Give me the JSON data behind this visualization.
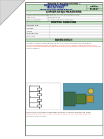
{
  "title_top": "LEMBAR KERJA MAHASISWA 1",
  "university": "UNIVERSITAS JEMBER",
  "faculty": "FAKULTAS TEKNIK",
  "dept": "PROGRAM STUDI TEKNIK ELEKTRO",
  "kode_label": "KODE\nDOKUMEN",
  "kode_value": "F1.03.07",
  "lkm_title": "LEMBAR KERJA MAHASISWA",
  "dosen_label": "Dosen Pengampu/Koordinator",
  "dosen_value": "Dr. Widyono, S.T., M.T., dan Sekundika Yoga",
  "matakuliah_label": "Mata Kuliah",
  "matakuliah_value": "Rangkaian Wiring",
  "topik_label": "Mata Pembelajaran",
  "topik_value": "Analisa dan Pengenalan Komponen",
  "identitas_title": "IDENTITAS MAHASISWA",
  "fields": [
    "Nama/NIM Kelas",
    "Kelompok",
    "Anggota",
    "Penanggung Ke.",
    "Nilai Tunaik"
  ],
  "bahan_title": "BAHAN DISKUSI",
  "bahan_text1": "Perhatikan Gambar penampang komponen sensor kelistrikan rangkaian motor dan diagram",
  "bahan_text2": "Wiring yang ada terampil. Selain itu dan dari > 5 media literasi referensi yang tersedia pada push-to",
  "bahan_text3": "berhasil dan berikan pengetahuan terkait nama-nama bahan, karakteristik dan detail ke fungsi komponen",
  "bahan_text4": "yang dicontohkan!",
  "footer_text1": "Pada pengisian data tersebut tuliskan komponen-komponen SENA Para komsilator yang kurang",
  "footer_text2": "sempat/mengisi kolom-kolom dibawah. Dan Kenang Panduan Pelatihan Alat Rangka komponen!",
  "footer_text3": "Kemudian Berkas kami Kenal",
  "bg_color": "#f0f0f0",
  "page_color": "#ffffff",
  "header_bg": "#c8dfc8",
  "header_border": "#5a8a5a",
  "table_border": "#aaaaaa",
  "green_border": "#6aaa6a",
  "red_text_color": "#cc2200",
  "diagram_bg": "#5a9ab0",
  "fold_color": "#d8d8d8",
  "fold_shadow": "#b0b0b0",
  "lkm_bg": "#e8f0e8"
}
